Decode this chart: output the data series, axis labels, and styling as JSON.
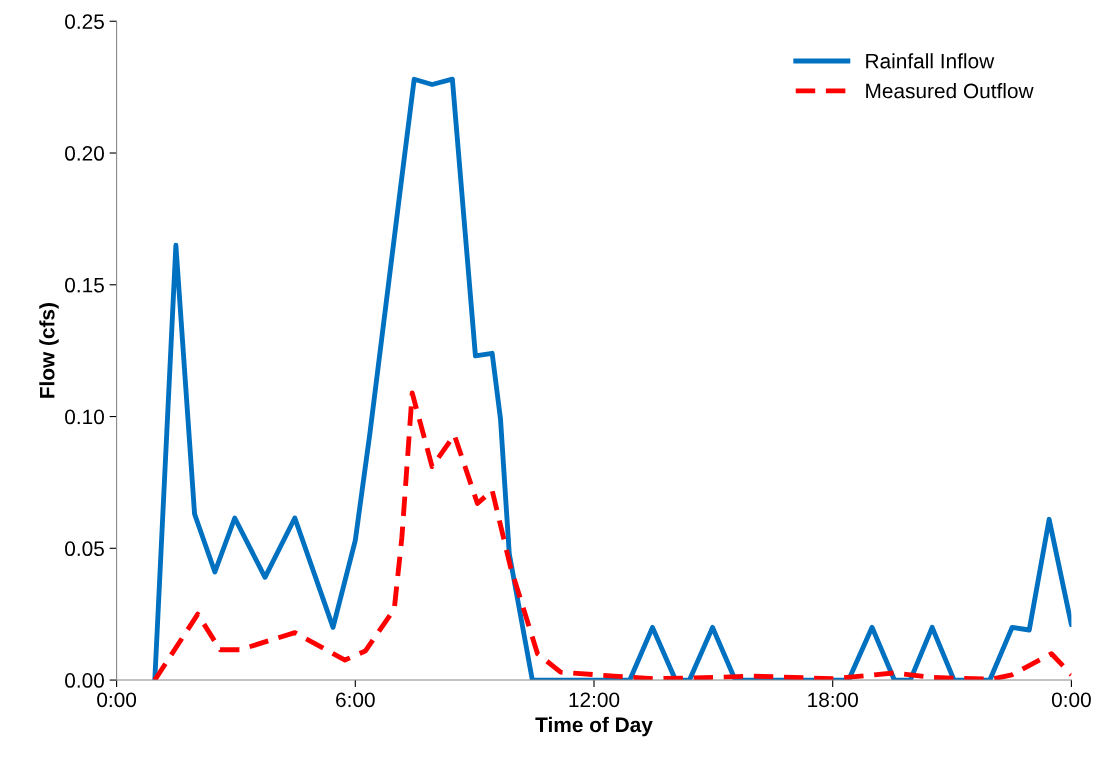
{
  "chart_data": {
    "type": "line",
    "xlabel": "Time of Day",
    "ylabel": "Flow (cfs)",
    "xlim": [
      0,
      24
    ],
    "xticks": [
      {
        "value": 0,
        "label": "0:00"
      },
      {
        "value": 6,
        "label": "6:00"
      },
      {
        "value": 12,
        "label": "12:00"
      },
      {
        "value": 18,
        "label": "18:00"
      },
      {
        "value": 24,
        "label": "0:00"
      }
    ],
    "ylim": [
      0,
      0.25
    ],
    "yticks": [
      {
        "value": 0,
        "label": "0.00"
      },
      {
        "value": 0.05,
        "label": "0.05"
      },
      {
        "value": 0.1,
        "label": "0.10"
      },
      {
        "value": 0.15,
        "label": "0.15"
      },
      {
        "value": 0.2,
        "label": "0.20"
      },
      {
        "value": 0.25,
        "label": "0.25"
      }
    ],
    "grid": false,
    "legend": "top right",
    "marker": "none",
    "series": [
      {
        "name": "Rainfall Inflow",
        "color": "#0070c0",
        "line_style": "solid",
        "x": [
          0.96,
          1.49,
          1.96,
          2.47,
          2.97,
          3.73,
          4.48,
          5.44,
          6.0,
          6.37,
          7.13,
          7.48,
          7.93,
          8.44,
          9.02,
          9.44,
          9.65,
          9.87,
          10.45,
          12.9,
          13.47,
          14.05,
          14.4,
          14.98,
          15.55,
          18.4,
          18.99,
          19.55,
          19.95,
          20.5,
          21.05,
          21.95,
          22.51,
          22.94,
          23.44,
          24.0
        ],
        "values": [
          0,
          0.165,
          0.063,
          0.041,
          0.0615,
          0.039,
          0.0615,
          0.02,
          0.053,
          0.094,
          0.186,
          0.228,
          0.226,
          0.228,
          0.123,
          0.124,
          0.099,
          0.048,
          0,
          0,
          0.02,
          0,
          0,
          0.02,
          0,
          0,
          0.02,
          0,
          0,
          0.02,
          0,
          0,
          0.02,
          0.019,
          0.061,
          0.021
        ]
      },
      {
        "name": "Measured Outflow",
        "color": "#ff0000",
        "line_style": "dashed",
        "x": [
          0.96,
          2.04,
          2.6,
          3.1,
          4.48,
          5.74,
          6.25,
          6.98,
          7.17,
          7.43,
          7.93,
          8.49,
          9.07,
          9.44,
          9.9,
          10.58,
          11.16,
          12.5,
          13.5,
          15.0,
          16.0,
          18.0,
          19.54,
          20.5,
          22.0,
          22.5,
          23.5,
          24.0
        ],
        "values": [
          0,
          0.025,
          0.0115,
          0.0115,
          0.018,
          0.0076,
          0.011,
          0.027,
          0.054,
          0.109,
          0.081,
          0.093,
          0.067,
          0.072,
          0.043,
          0.01,
          0.003,
          0.0015,
          0.0005,
          0.001,
          0.0015,
          0.0005,
          0.0027,
          0.001,
          0.0003,
          0.002,
          0.01,
          0.002
        ]
      }
    ]
  }
}
